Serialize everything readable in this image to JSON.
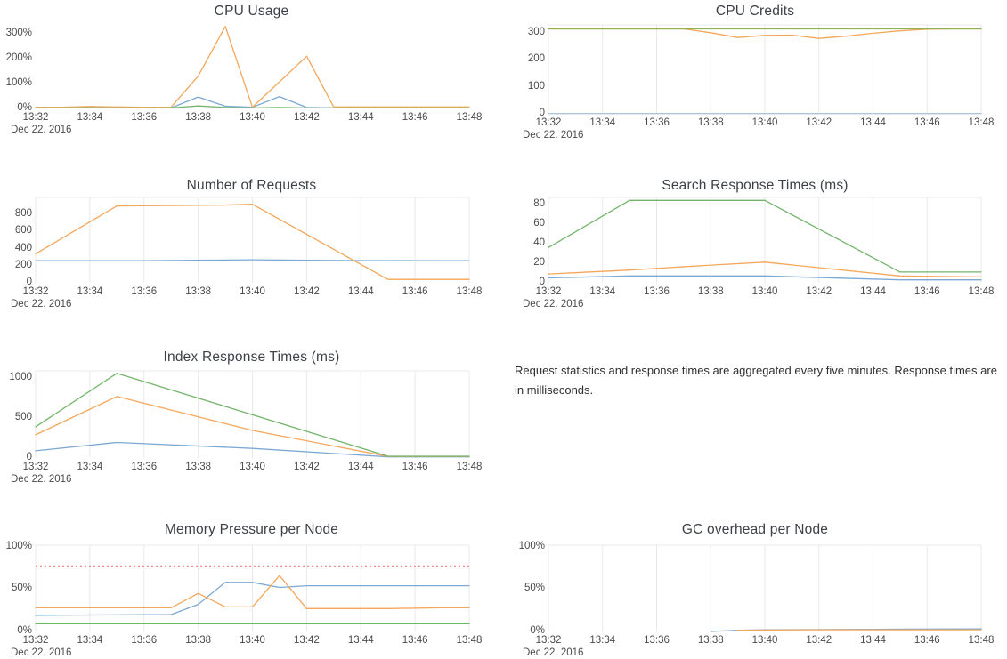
{
  "note": {
    "text": "Request statistics and response times are aggregated every five minutes. Response times are in milliseconds."
  },
  "chart_data": [
    {
      "type": "line",
      "title": "CPU Usage",
      "x_tick_labels": [
        "13:32",
        "13:34",
        "13:36",
        "13:38",
        "13:40",
        "13:42",
        "13:44",
        "13:46",
        "13:48"
      ],
      "x_date_label": "Dec 22. 2016",
      "x_range": [
        0,
        16
      ],
      "ylim": [
        0,
        336
      ],
      "y_ticks": [
        {
          "v": 0,
          "label": "0%"
        },
        {
          "v": 100,
          "label": "100%"
        },
        {
          "v": 200,
          "label": "200%"
        },
        {
          "v": 300,
          "label": "300%"
        }
      ],
      "grid": {
        "vertical_lines": false,
        "top_border": false
      },
      "series": [
        {
          "name": "blue",
          "color": "#7ba9d4",
          "points": [
            [
              0,
              2
            ],
            [
              1,
              2
            ],
            [
              2,
              3
            ],
            [
              3,
              2
            ],
            [
              4,
              2
            ],
            [
              5,
              2
            ],
            [
              6,
              46
            ],
            [
              7,
              9
            ],
            [
              8,
              5
            ],
            [
              9,
              48
            ],
            [
              10,
              4
            ],
            [
              11,
              2
            ],
            [
              12,
              2
            ],
            [
              13,
              2
            ],
            [
              14,
              2
            ],
            [
              15,
              2
            ],
            [
              16,
              2
            ]
          ]
        },
        {
          "name": "orange",
          "color": "#f4a75b",
          "points": [
            [
              0,
              5
            ],
            [
              1,
              5
            ],
            [
              2,
              8
            ],
            [
              3,
              6
            ],
            [
              4,
              5
            ],
            [
              5,
              5
            ],
            [
              6,
              130
            ],
            [
              7,
              330
            ],
            [
              8,
              5
            ],
            [
              10,
              210
            ],
            [
              11,
              6
            ],
            [
              12,
              6
            ],
            [
              13,
              6
            ],
            [
              14,
              6
            ],
            [
              15,
              6
            ],
            [
              16,
              6
            ]
          ]
        },
        {
          "name": "green",
          "color": "#72b56a",
          "points": [
            [
              0,
              2
            ],
            [
              1,
              2
            ],
            [
              2,
              2
            ],
            [
              3,
              2
            ],
            [
              4,
              2
            ],
            [
              5,
              2
            ],
            [
              6,
              10
            ],
            [
              7,
              4
            ],
            [
              8,
              2
            ],
            [
              9,
              4
            ],
            [
              10,
              2
            ],
            [
              11,
              2
            ],
            [
              12,
              2
            ],
            [
              13,
              2
            ],
            [
              14,
              2
            ],
            [
              15,
              2
            ],
            [
              16,
              2
            ]
          ]
        }
      ]
    },
    {
      "type": "line",
      "title": "CPU Credits",
      "x_tick_labels": [
        "13:32",
        "13:34",
        "13:36",
        "13:38",
        "13:40",
        "13:42",
        "13:44",
        "13:46",
        "13:48"
      ],
      "x_date_label": "Dec 22. 2016",
      "x_range": [
        0,
        16
      ],
      "ylim": [
        0,
        330
      ],
      "y_ticks": [
        {
          "v": 0,
          "label": "0"
        },
        {
          "v": 100,
          "label": "100"
        },
        {
          "v": 200,
          "label": "200"
        },
        {
          "v": 300,
          "label": "300"
        }
      ],
      "grid": {
        "vertical_lines": true,
        "top_border": true
      },
      "series": [
        {
          "name": "blue",
          "color": "#a9c6e0",
          "points": [
            [
              0,
              1
            ],
            [
              16,
              1
            ]
          ]
        },
        {
          "name": "orange",
          "color": "#f4a75b",
          "points": [
            [
              0,
              315
            ],
            [
              5,
              315
            ],
            [
              6,
              301
            ],
            [
              7,
              283
            ],
            [
              8,
              291
            ],
            [
              9,
              292
            ],
            [
              10,
              280
            ],
            [
              11,
              288
            ],
            [
              12,
              299
            ],
            [
              13,
              308
            ],
            [
              14,
              314
            ],
            [
              15,
              315
            ],
            [
              16,
              315
            ]
          ]
        },
        {
          "name": "green",
          "color": "#8fb153",
          "points": [
            [
              0,
              315
            ],
            [
              16,
              315
            ]
          ]
        }
      ]
    },
    {
      "type": "line",
      "title": "Number of Requests",
      "x_tick_labels": [
        "13:32",
        "13:34",
        "13:36",
        "13:38",
        "13:40",
        "13:42",
        "13:44",
        "13:46",
        "13:48"
      ],
      "x_date_label": "Dec 22. 2016",
      "x_range": [
        0,
        16
      ],
      "ylim": [
        0,
        1000
      ],
      "y_ticks": [
        {
          "v": 0,
          "label": "0"
        },
        {
          "v": 200,
          "label": "200"
        },
        {
          "v": 400,
          "label": "400"
        },
        {
          "v": 600,
          "label": "600"
        },
        {
          "v": 800,
          "label": "800"
        }
      ],
      "grid": {
        "vertical_lines": true,
        "top_border": true
      },
      "series": [
        {
          "name": "blue",
          "color": "#7ba9d4",
          "points": [
            [
              0,
              258
            ],
            [
              4,
              258
            ],
            [
              6,
              264
            ],
            [
              8,
              270
            ],
            [
              10,
              264
            ],
            [
              12,
              260
            ],
            [
              16,
              258
            ]
          ]
        },
        {
          "name": "orange",
          "color": "#f4a75b",
          "points": [
            [
              0,
              340
            ],
            [
              3,
              900
            ],
            [
              4,
              903
            ],
            [
              5,
              905
            ],
            [
              6,
              907
            ],
            [
              7,
              910
            ],
            [
              8,
              920
            ],
            [
              13,
              40
            ],
            [
              16,
              40
            ]
          ]
        }
      ]
    },
    {
      "type": "line",
      "title": "Search Response Times (ms)",
      "x_tick_labels": [
        "13:32",
        "13:34",
        "13:36",
        "13:38",
        "13:40",
        "13:42",
        "13:44",
        "13:46",
        "13:48"
      ],
      "x_date_label": "Dec 22. 2016",
      "x_range": [
        0,
        16
      ],
      "ylim": [
        0,
        87
      ],
      "y_ticks": [
        {
          "v": 0,
          "label": "0"
        },
        {
          "v": 20,
          "label": "20"
        },
        {
          "v": 40,
          "label": "40"
        },
        {
          "v": 60,
          "label": "60"
        },
        {
          "v": 80,
          "label": "80"
        }
      ],
      "grid": {
        "vertical_lines": true,
        "top_border": true
      },
      "series": [
        {
          "name": "blue",
          "color": "#7ba9d4",
          "points": [
            [
              0,
              5
            ],
            [
              3,
              7
            ],
            [
              8,
              7
            ],
            [
              13,
              3
            ],
            [
              16,
              3
            ]
          ]
        },
        {
          "name": "orange",
          "color": "#f4a75b",
          "points": [
            [
              0,
              9
            ],
            [
              3,
              13
            ],
            [
              6,
              18
            ],
            [
              8,
              21
            ],
            [
              13,
              7
            ],
            [
              16,
              6
            ]
          ]
        },
        {
          "name": "green",
          "color": "#72b56a",
          "points": [
            [
              0,
              36
            ],
            [
              3,
              84
            ],
            [
              8,
              84
            ],
            [
              13,
              11
            ],
            [
              16,
              11
            ]
          ]
        }
      ]
    },
    {
      "type": "line",
      "title": "Index Response Times (ms)",
      "x_tick_labels": [
        "13:32",
        "13:34",
        "13:36",
        "13:38",
        "13:40",
        "13:42",
        "13:44",
        "13:46",
        "13:48"
      ],
      "x_date_label": "Dec 22. 2016",
      "x_range": [
        0,
        16
      ],
      "ylim": [
        0,
        1090
      ],
      "y_ticks": [
        {
          "v": 0,
          "label": "0"
        },
        {
          "v": 500,
          "label": "500"
        },
        {
          "v": 1000,
          "label": "1000"
        }
      ],
      "grid": {
        "vertical_lines": true,
        "top_border": true
      },
      "series": [
        {
          "name": "blue",
          "color": "#7ba9d4",
          "points": [
            [
              0,
              90
            ],
            [
              3,
              195
            ],
            [
              8,
              120
            ],
            [
              13,
              15
            ],
            [
              16,
              15
            ]
          ]
        },
        {
          "name": "orange",
          "color": "#f4a75b",
          "points": [
            [
              0,
              290
            ],
            [
              3,
              770
            ],
            [
              8,
              345
            ],
            [
              13,
              20
            ],
            [
              16,
              20
            ]
          ]
        },
        {
          "name": "green",
          "color": "#72b56a",
          "points": [
            [
              0,
              390
            ],
            [
              3,
              1060
            ],
            [
              13,
              22
            ],
            [
              16,
              22
            ]
          ]
        }
      ]
    },
    {
      "type": "line",
      "title": "Memory Pressure per Node",
      "x_tick_labels": [
        "13:32",
        "13:34",
        "13:36",
        "13:38",
        "13:40",
        "13:42",
        "13:44",
        "13:46",
        "13:48"
      ],
      "x_date_label": "Dec 22. 2016",
      "x_range": [
        0,
        16
      ],
      "ylim": [
        0,
        102
      ],
      "y_ticks": [
        {
          "v": 0,
          "label": "0%"
        },
        {
          "v": 50,
          "label": "50%"
        },
        {
          "v": 100,
          "label": "100%"
        }
      ],
      "grid": {
        "vertical_lines": true,
        "top_border": true
      },
      "threshold": {
        "value": 77,
        "color": "#ef8f8f",
        "style": "dotted"
      },
      "series": [
        {
          "name": "blue",
          "color": "#7ba9d4",
          "points": [
            [
              0,
              19
            ],
            [
              5,
              20
            ],
            [
              6,
              32
            ],
            [
              7,
              58
            ],
            [
              8,
              58
            ],
            [
              9,
              52
            ],
            [
              10,
              54
            ],
            [
              16,
              54
            ]
          ]
        },
        {
          "name": "orange",
          "color": "#f4a75b",
          "points": [
            [
              0,
              28
            ],
            [
              5,
              28
            ],
            [
              6,
              45
            ],
            [
              7,
              29
            ],
            [
              8,
              29
            ],
            [
              9,
              66
            ],
            [
              10,
              27
            ],
            [
              13,
              27
            ],
            [
              15,
              28
            ],
            [
              16,
              28
            ]
          ]
        },
        {
          "name": "green",
          "color": "#72b56a",
          "points": [
            [
              0,
              9
            ],
            [
              16,
              9
            ]
          ]
        }
      ]
    },
    {
      "type": "line",
      "title": "GC overhead per Node",
      "x_tick_labels": [
        "13:32",
        "13:34",
        "13:36",
        "13:38",
        "13:40",
        "13:42",
        "13:44",
        "13:46",
        "13:48"
      ],
      "x_date_label": "Dec 22. 2016",
      "x_range": [
        0,
        16
      ],
      "ylim": [
        0,
        102
      ],
      "y_ticks": [
        {
          "v": 0,
          "label": "0%"
        },
        {
          "v": 50,
          "label": "50%"
        },
        {
          "v": 100,
          "label": "100%"
        }
      ],
      "grid": {
        "vertical_lines": true,
        "top_border": true
      },
      "series": [
        {
          "name": "blue",
          "color": "#7ba9d4",
          "points": [
            [
              6,
              0
            ],
            [
              7,
              1.5
            ],
            [
              8,
              2
            ],
            [
              12,
              2.5
            ],
            [
              16,
              3
            ]
          ]
        },
        {
          "name": "orange",
          "color": "#f4a75b",
          "points": [
            [
              7,
              1.5
            ],
            [
              10,
              2
            ],
            [
              16,
              2
            ]
          ]
        }
      ]
    }
  ]
}
